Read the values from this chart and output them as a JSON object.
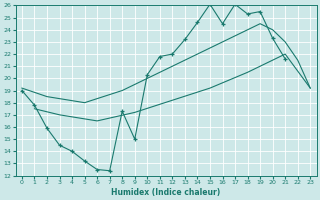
{
  "xlabel": "Humidex (Indice chaleur)",
  "xlim": [
    -0.5,
    23.5
  ],
  "ylim": [
    12,
    26
  ],
  "xticks": [
    0,
    1,
    2,
    3,
    4,
    5,
    6,
    7,
    8,
    9,
    10,
    11,
    12,
    13,
    14,
    15,
    16,
    17,
    18,
    19,
    20,
    21,
    22,
    23
  ],
  "yticks": [
    12,
    13,
    14,
    15,
    16,
    17,
    18,
    19,
    20,
    21,
    22,
    23,
    24,
    25,
    26
  ],
  "bg_color": "#cde8e8",
  "grid_color": "#b0d4d4",
  "line_color": "#1a7a6e",
  "s1x": [
    0,
    1,
    2,
    3,
    4,
    5,
    6,
    7,
    8,
    9,
    10,
    11,
    12,
    13,
    14,
    15,
    16,
    17,
    18,
    19,
    20,
    21
  ],
  "s1y": [
    19.0,
    17.8,
    15.9,
    14.5,
    14.0,
    13.2,
    12.5,
    12.4,
    17.3,
    15.0,
    20.3,
    21.8,
    22.0,
    23.2,
    24.6,
    26.1,
    24.5,
    26.1,
    25.3,
    25.5,
    23.3,
    21.6
  ],
  "s2x": [
    0,
    2,
    5,
    8,
    11,
    14,
    17,
    19,
    20,
    21,
    22,
    23
  ],
  "s2y": [
    19.2,
    18.5,
    18.0,
    19.0,
    20.5,
    22.0,
    23.5,
    24.5,
    24.0,
    23.0,
    21.5,
    19.2
  ],
  "s3x": [
    1,
    3,
    6,
    9,
    12,
    15,
    18,
    21,
    23
  ],
  "s3y": [
    17.5,
    17.0,
    16.5,
    17.2,
    18.2,
    19.2,
    20.5,
    22.0,
    19.2
  ]
}
